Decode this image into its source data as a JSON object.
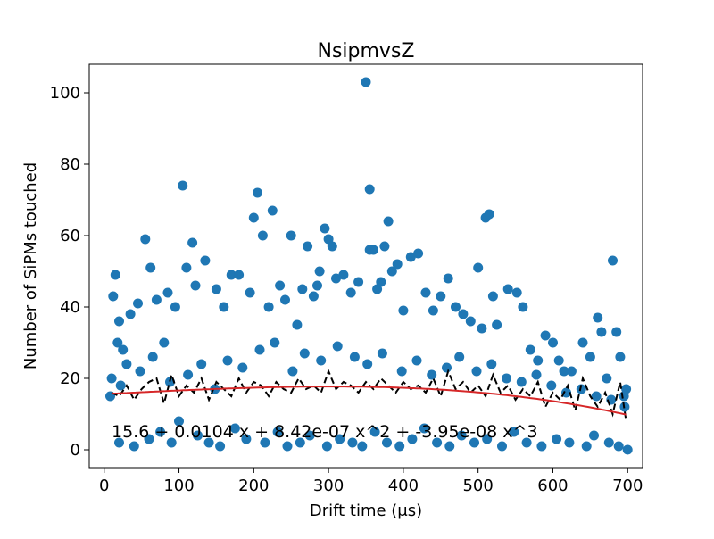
{
  "chart_data": {
    "type": "scatter",
    "title": "NsipmvsZ",
    "xlabel": "Drift time (μs)",
    "ylabel": "Number of SiPMs touched",
    "xlim": [
      -20,
      720
    ],
    "ylim": [
      -5,
      108
    ],
    "xticks": [
      0,
      100,
      200,
      300,
      400,
      500,
      600,
      700
    ],
    "yticks": [
      0,
      20,
      40,
      60,
      80,
      100
    ],
    "grid": false,
    "legend": "none",
    "annotation": "15.6 + 0.0104 x + 8.42e-07 x^2 + -3.95e-08 x^3",
    "colors": {
      "points": "#1f77b4",
      "fit": "#d62728",
      "profile": "#000000"
    },
    "fit": {
      "name": "cubic polynomial",
      "coefficients": [
        15.6,
        0.0104,
        8.42e-07,
        -3.95e-08
      ],
      "x_range": [
        10,
        698
      ]
    },
    "series": [
      {
        "kind": "scatter",
        "x": [
          12,
          15,
          18,
          20,
          25,
          30,
          35,
          45,
          55,
          62,
          70,
          80,
          85,
          95,
          105,
          110,
          118,
          122,
          135,
          150,
          160,
          170,
          180,
          195,
          200,
          205,
          212,
          220,
          225,
          235,
          242,
          250,
          258,
          265,
          272,
          280,
          285,
          288,
          295,
          300,
          305,
          310,
          320,
          330,
          340,
          350,
          355,
          355,
          360,
          365,
          370,
          375,
          380,
          385,
          392,
          400,
          410,
          420,
          430,
          440,
          450,
          460,
          470,
          480,
          490,
          500,
          505,
          510,
          515,
          520,
          525,
          540,
          552,
          560,
          570,
          580,
          590,
          600,
          608,
          615,
          625,
          640,
          650,
          660,
          665,
          672,
          680,
          685,
          690,
          695,
          698,
          20,
          40,
          60,
          75,
          90,
          100,
          125,
          140,
          155,
          175,
          190,
          215,
          232,
          245,
          262,
          275,
          298,
          315,
          332,
          345,
          362,
          378,
          395,
          412,
          428,
          445,
          462,
          478,
          495,
          512,
          532,
          548,
          565,
          585,
          605,
          622,
          645,
          655,
          675,
          688,
          700,
          8,
          10,
          22,
          48,
          65,
          88,
          112,
          130,
          148,
          165,
          185,
          208,
          228,
          252,
          268,
          290,
          312,
          335,
          352,
          372,
          398,
          418,
          438,
          458,
          475,
          498,
          518,
          538,
          558,
          578,
          598,
          618,
          638,
          658,
          678,
          696
        ],
        "y": [
          43,
          49,
          30,
          36,
          28,
          24,
          38,
          41,
          59,
          51,
          42,
          30,
          44,
          40,
          74,
          51,
          58,
          46,
          53,
          45,
          40,
          49,
          49,
          44,
          65,
          72,
          60,
          40,
          67,
          46,
          42,
          60,
          35,
          45,
          57,
          43,
          46,
          50,
          62,
          59,
          57,
          48,
          49,
          44,
          47,
          103,
          73,
          56,
          56,
          45,
          47,
          57,
          64,
          50,
          52,
          39,
          54,
          55,
          44,
          39,
          43,
          48,
          40,
          38,
          36,
          51,
          34,
          65,
          66,
          43,
          35,
          45,
          44,
          40,
          28,
          25,
          32,
          30,
          25,
          22,
          22,
          30,
          26,
          37,
          33,
          20,
          53,
          33,
          26,
          15,
          17,
          2,
          1,
          3,
          5,
          2,
          8,
          4,
          2,
          1,
          6,
          3,
          2,
          5,
          1,
          2,
          4,
          1,
          3,
          2,
          1,
          5,
          2,
          1,
          3,
          6,
          2,
          1,
          4,
          2,
          3,
          1,
          5,
          2,
          1,
          3,
          2,
          1,
          4,
          2,
          1,
          0,
          15,
          20,
          18,
          22,
          26,
          19,
          21,
          24,
          17,
          25,
          23,
          28,
          30,
          22,
          27,
          25,
          29,
          26,
          24,
          27,
          22,
          25,
          21,
          23,
          26,
          22,
          24,
          20,
          19,
          21,
          18,
          16,
          17,
          15,
          14,
          12
        ]
      },
      {
        "kind": "profile",
        "x": [
          10,
          20,
          30,
          40,
          50,
          60,
          70,
          80,
          90,
          100,
          110,
          120,
          130,
          140,
          150,
          160,
          170,
          180,
          190,
          200,
          210,
          220,
          230,
          240,
          250,
          260,
          270,
          280,
          290,
          300,
          310,
          320,
          330,
          340,
          350,
          360,
          370,
          380,
          390,
          400,
          410,
          420,
          430,
          440,
          450,
          460,
          470,
          480,
          490,
          500,
          510,
          520,
          530,
          540,
          550,
          560,
          570,
          580,
          590,
          600,
          610,
          620,
          630,
          640,
          650,
          660,
          670,
          680,
          690,
          698
        ],
        "y": [
          16,
          15,
          18,
          14,
          17,
          19,
          20,
          13,
          21,
          15,
          18,
          16,
          20,
          14,
          19,
          17,
          15,
          20,
          16,
          19,
          18,
          15,
          19,
          17,
          16,
          20,
          17,
          18,
          16,
          22,
          17,
          19,
          18,
          16,
          19,
          17,
          20,
          18,
          16,
          19,
          17,
          18,
          16,
          20,
          15,
          22,
          17,
          19,
          16,
          18,
          15,
          21,
          16,
          18,
          14,
          17,
          15,
          19,
          12,
          16,
          14,
          18,
          11,
          20,
          15,
          12,
          16,
          10,
          19,
          8
        ]
      }
    ]
  }
}
